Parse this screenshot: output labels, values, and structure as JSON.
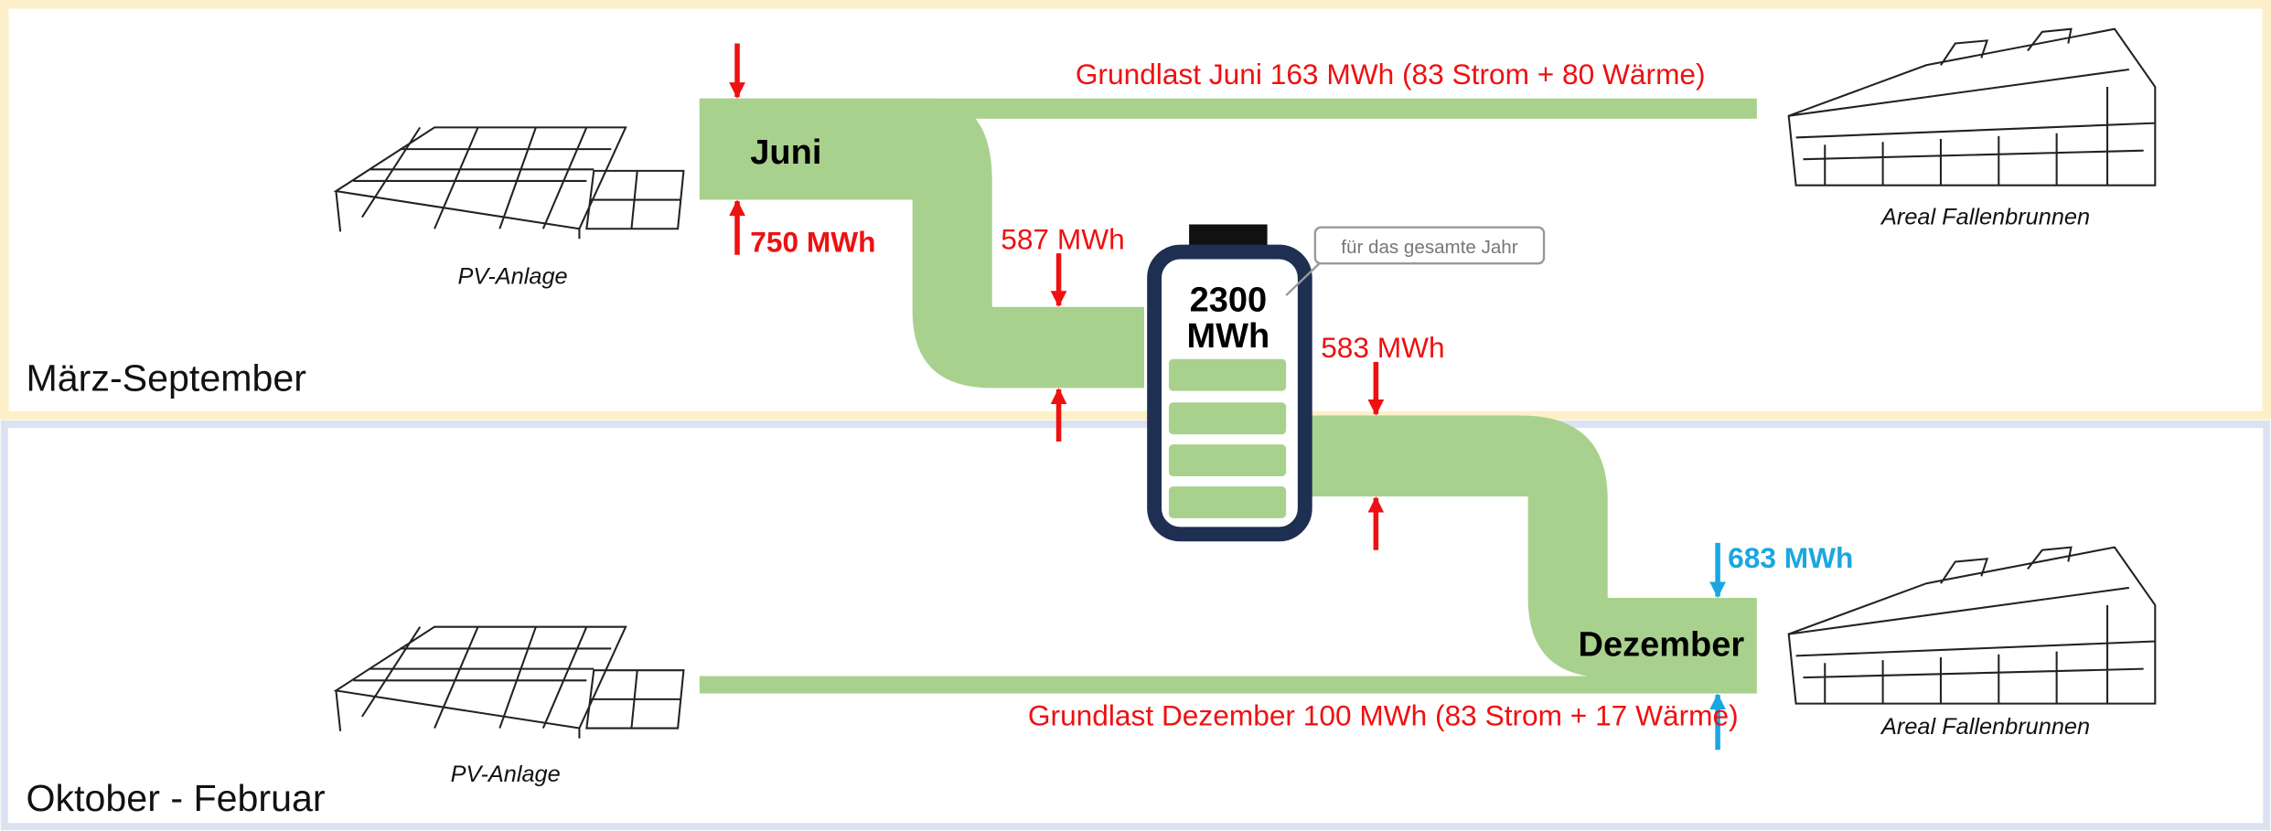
{
  "sections": {
    "summer": "März-September",
    "winter": "Oktober - Februar"
  },
  "summer": {
    "month": "Juni",
    "pv_label": "PV-Anlage",
    "pv_energy": "750 MWh",
    "to_storage": "587 MWh",
    "baseload": "Grundlast Juni 163 MWh (83 Strom + 80 Wärme)",
    "consumer": "Areal Fallenbrunnen"
  },
  "storage": {
    "capacity": "2300",
    "unit": "MWh",
    "callout": "für das gesamte Jahr"
  },
  "winter": {
    "month": "Dezember",
    "from_storage": "583 MWh",
    "demand": "683 MWh",
    "baseload": "Grundlast Dezember 100 MWh (83 Strom + 17 Wärme)",
    "pv_label": "PV-Anlage",
    "consumer": "Areal Fallenbrunnen"
  }
}
